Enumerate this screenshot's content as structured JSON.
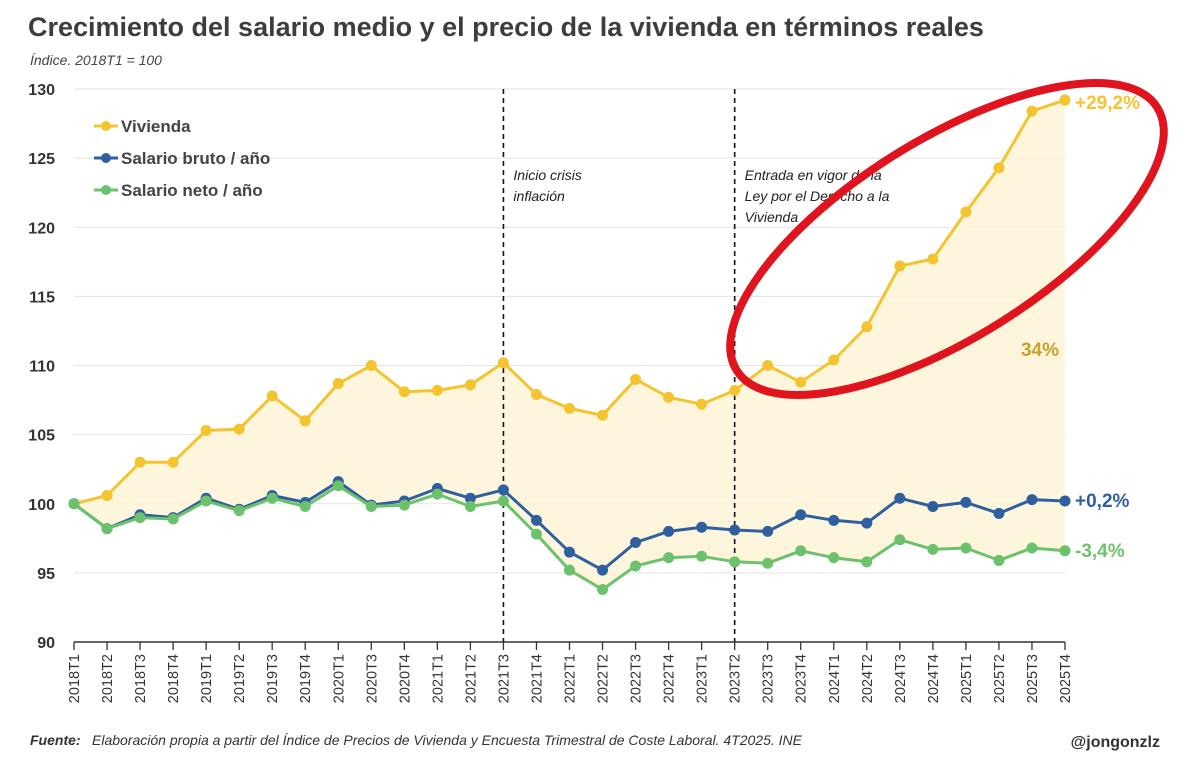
{
  "chart_data": {
    "type": "line",
    "title": "Crecimiento del salario medio y el precio de la vivienda en términos reales",
    "subtitle": "Índice. 2018T1 = 100",
    "ylim": [
      90,
      130
    ],
    "yticks": [
      "90",
      "95",
      "100",
      "105",
      "110",
      "115",
      "120",
      "125",
      "130"
    ],
    "categories": [
      "2018T1",
      "2018T2",
      "2018T3",
      "2018T4",
      "2019T1",
      "2019T2",
      "2019T3",
      "2019T4",
      "2020T1",
      "2020T3",
      "2020T4",
      "2021T1",
      "2021T2",
      "2021T3",
      "2021T4",
      "2022T1",
      "2022T2",
      "2022T3",
      "2022T4",
      "2023T1",
      "2023T2",
      "2023T3",
      "2023T4",
      "2024T1",
      "2024T2",
      "2024T3",
      "2024T4",
      "2025T1",
      "2025T2",
      "2025T3",
      "2025T4"
    ],
    "series": [
      {
        "name": "Vivienda",
        "color": "#f4c430",
        "end_label": "+29,2%",
        "values": [
          100.0,
          100.6,
          103.0,
          103.0,
          105.3,
          105.4,
          107.8,
          106.0,
          108.7,
          110.0,
          108.1,
          108.2,
          108.6,
          110.2,
          107.9,
          106.9,
          106.4,
          109.0,
          107.7,
          107.2,
          108.2,
          110.0,
          108.8,
          110.4,
          112.8,
          117.2,
          117.7,
          121.1,
          124.3,
          128.4,
          129.2
        ]
      },
      {
        "name": "Salario bruto / año",
        "color": "#2f5f9e",
        "end_label": "+0,2%",
        "values": [
          100.0,
          98.2,
          99.2,
          99.0,
          100.4,
          99.6,
          100.6,
          100.1,
          101.6,
          99.9,
          100.2,
          101.1,
          100.4,
          101.0,
          98.8,
          96.5,
          95.2,
          97.2,
          98.0,
          98.3,
          98.1,
          98.0,
          99.2,
          98.8,
          98.6,
          100.4,
          99.8,
          100.1,
          99.3,
          100.3,
          100.2
        ]
      },
      {
        "name": "Salario neto / año",
        "color": "#6cc26c",
        "end_label": "-3,4%",
        "values": [
          100.0,
          98.2,
          99.0,
          98.9,
          100.2,
          99.5,
          100.4,
          99.8,
          101.3,
          99.8,
          99.9,
          100.7,
          99.8,
          100.2,
          97.8,
          95.2,
          93.8,
          95.5,
          96.1,
          96.2,
          95.8,
          95.7,
          96.6,
          96.1,
          95.8,
          97.4,
          96.7,
          96.8,
          95.9,
          96.8,
          96.6
        ]
      }
    ],
    "gap_label": "34%",
    "vlines": [
      {
        "category": "2021T3",
        "text": [
          "Inicio crisis",
          "inflación"
        ]
      },
      {
        "category": "2023T2",
        "text": [
          "Entrada en vigor de la",
          "Ley por el Derecho a la",
          "Vivienda"
        ]
      }
    ],
    "legend_position": "top-left",
    "highlight": "red ellipse around Vivienda 2023T2–2025T4"
  },
  "footer": {
    "label": "Fuente:",
    "text": "Elaboración propia a partir del Índice de Precios de Vivienda y Encuesta Trimestral de Coste Laboral. 4T2025. INE",
    "credit": "@jongonzlz"
  }
}
